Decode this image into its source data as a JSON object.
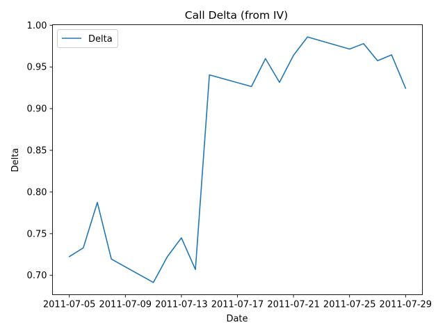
{
  "chart_data": {
    "type": "line",
    "title": "Call Delta (from IV)",
    "xlabel": "Date",
    "ylabel": "Delta",
    "x": [
      "2011-07-05",
      "2011-07-06",
      "2011-07-07",
      "2011-07-08",
      "2011-07-11",
      "2011-07-12",
      "2011-07-13",
      "2011-07-14",
      "2011-07-15",
      "2011-07-18",
      "2011-07-19",
      "2011-07-20",
      "2011-07-21",
      "2011-07-22",
      "2011-07-25",
      "2011-07-26",
      "2011-07-27",
      "2011-07-28",
      "2011-07-29"
    ],
    "series": [
      {
        "name": "Delta",
        "color": "#1f77b4",
        "values": [
          0.7225,
          0.733,
          0.7875,
          0.7195,
          0.6915,
          0.7225,
          0.745,
          0.707,
          0.9405,
          0.9265,
          0.96,
          0.9315,
          0.964,
          0.986,
          0.9715,
          0.978,
          0.9575,
          0.9645,
          0.9245
        ]
      }
    ],
    "xlim": [
      "2011-07-03 19:12",
      "2011-07-30 04:48"
    ],
    "ylim": [
      0.6768,
      1.0007
    ],
    "xticks": [
      "2011-07-05",
      "2011-07-09",
      "2011-07-13",
      "2011-07-17",
      "2011-07-21",
      "2011-07-25",
      "2011-07-29"
    ],
    "yticks": [
      0.7,
      0.75,
      0.8,
      0.85,
      0.9,
      0.95,
      1.0
    ],
    "legend": "upper left",
    "grid": false
  }
}
